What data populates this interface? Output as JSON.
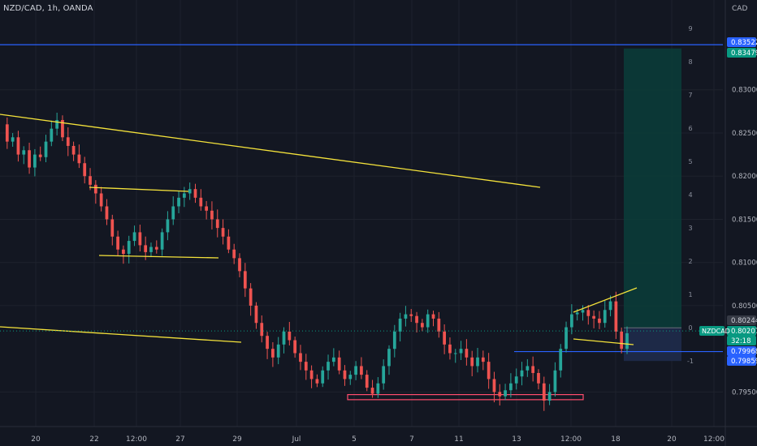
{
  "header": {
    "symbol_line": "NZD/CAD, 1h, OANDA",
    "currency": "CAD"
  },
  "colors": {
    "background": "#131722",
    "grid": "#1e222d",
    "up": "#26a69a",
    "down": "#ef5350",
    "trendline": "#f5e33b",
    "blue_line": "#2962ff",
    "target_zone": "#0b3d3a",
    "stop_zone": "#1d2a4a",
    "support_box": "#ff4d6d"
  },
  "price_axis": {
    "ticks": [
      "0.83000",
      "0.82500",
      "0.82000",
      "0.81500",
      "0.81000",
      "0.80500",
      "0.79500"
    ],
    "labels": [
      {
        "text": "0.83522",
        "bg": "#2962ff",
        "fg": "#ffffff"
      },
      {
        "text": "0.83479",
        "bg": "#089981",
        "fg": "#ffffff"
      },
      {
        "text": "0.80244",
        "bg": "#363a45",
        "fg": "#d1d4dc"
      },
      {
        "text": "0.80207",
        "bg": "#089981",
        "fg": "#ffffff"
      },
      {
        "text": "32:18",
        "bg": "#089981",
        "fg": "#ffffff"
      },
      {
        "text": "0.79968",
        "bg": "#2962ff",
        "fg": "#ffffff"
      },
      {
        "text": "0.79859",
        "bg": "#2962ff",
        "fg": "#ffffff"
      }
    ],
    "symbol_tag": "NZDCAD"
  },
  "level_scale": {
    "labels": [
      "9",
      "8",
      "7",
      "6",
      "5",
      "4",
      "3",
      "2",
      "1",
      "0",
      "-1"
    ]
  },
  "time_axis": {
    "labels": [
      "20",
      "22",
      "12:00",
      "27",
      "29",
      "Jul",
      "5",
      "7",
      "11",
      "13",
      "12:00",
      "18",
      "20",
      "12:00"
    ]
  },
  "chart_data": {
    "type": "candlestick",
    "instrument": "NZD/CAD",
    "interval": "1h",
    "source": "OANDA",
    "y_range": [
      0.791,
      0.8404
    ],
    "current_price": 0.80207,
    "horizontal_levels": [
      0.83522,
      0.79968
    ],
    "position_tool": {
      "entry": 0.80244,
      "target": 0.83479,
      "stop": 0.79859
    },
    "price_path_approx": [
      0.826,
      0.824,
      0.8245,
      0.8225,
      0.823,
      0.821,
      0.8225,
      0.8222,
      0.824,
      0.8255,
      0.8265,
      0.8245,
      0.8235,
      0.8225,
      0.8215,
      0.82,
      0.819,
      0.818,
      0.8165,
      0.815,
      0.813,
      0.8115,
      0.811,
      0.8125,
      0.8135,
      0.812,
      0.8112,
      0.8118,
      0.8115,
      0.8135,
      0.815,
      0.8165,
      0.8175,
      0.818,
      0.8185,
      0.8175,
      0.8165,
      0.816,
      0.815,
      0.814,
      0.813,
      0.8115,
      0.8105,
      0.809,
      0.807,
      0.805,
      0.803,
      0.8015,
      0.8,
      0.799,
      0.8005,
      0.802,
      0.801,
      0.7995,
      0.7985,
      0.7975,
      0.7965,
      0.796,
      0.7975,
      0.7985,
      0.799,
      0.7975,
      0.7965,
      0.797,
      0.798,
      0.797,
      0.7955,
      0.7948,
      0.796,
      0.798,
      0.8,
      0.802,
      0.8035,
      0.804,
      0.8038,
      0.803,
      0.8025,
      0.804,
      0.8035,
      0.802,
      0.8005,
      0.7995,
      0.7995,
      0.8,
      0.799,
      0.798,
      0.799,
      0.7985,
      0.7965,
      0.795,
      0.7945,
      0.7952,
      0.796,
      0.7968,
      0.7975,
      0.798,
      0.7972,
      0.796,
      0.794,
      0.795,
      0.7975,
      0.8,
      0.8025,
      0.804,
      0.8042,
      0.8045,
      0.8038,
      0.8035,
      0.803,
      0.8045,
      0.8055,
      0.802,
      0.8,
      0.8018
    ],
    "trendlines": [
      {
        "from": [
          "2022-06-18",
          0.8278
        ],
        "to": [
          "2022-07-10",
          0.8195
        ]
      },
      {
        "from": [
          "2022-06-22",
          0.8192
        ],
        "to": [
          "2022-06-26",
          0.8188
        ]
      },
      {
        "from": [
          "2022-06-22",
          0.8112
        ],
        "to": [
          "2022-06-28",
          0.8109
        ]
      },
      {
        "from": [
          "2022-06-18",
          0.8056
        ],
        "to": [
          "2022-06-30",
          0.8007
        ]
      },
      {
        "from": [
          "2022-07-14",
          0.8046
        ],
        "to": [
          "2022-07-18",
          0.8068
        ]
      },
      {
        "from": [
          "2022-07-14",
          0.8012
        ],
        "to": [
          "2022-07-18",
          0.8002
        ]
      }
    ],
    "support_zone": {
      "top": 0.7947,
      "bottom": 0.7943
    },
    "xlabel": "",
    "ylabel": ""
  }
}
